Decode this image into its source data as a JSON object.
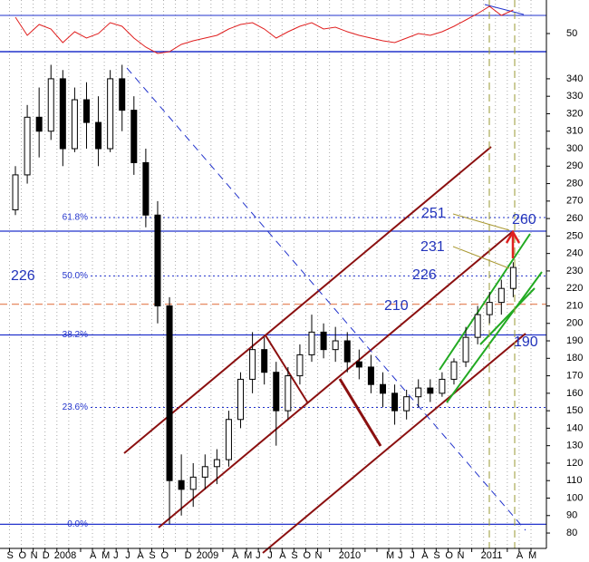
{
  "chart_data": {
    "type": "candlestick",
    "x": [
      0.5,
      1.5,
      2.5,
      3.5,
      4.5,
      5.5,
      6.5,
      7.5,
      8.5,
      9.5,
      10.5,
      11.5,
      12.5,
      13.5,
      14.5,
      15.5,
      16.5,
      17.5,
      18.5,
      19.5,
      20.5,
      21.5,
      22.5,
      23.5,
      24.5,
      25.5,
      26.5,
      27.5,
      28.5,
      29.5,
      30.5,
      31.5,
      32.5,
      33.5,
      34.5,
      35.5,
      36.5,
      37.5,
      38.5,
      39.5,
      40.5,
      41.5,
      42.5
    ],
    "open": [
      265,
      285,
      318,
      310,
      340,
      300,
      328,
      315,
      300,
      340,
      322,
      292,
      262,
      210,
      110,
      105,
      112,
      118,
      122,
      145,
      168,
      185,
      172,
      150,
      170,
      182,
      195,
      185,
      190,
      178,
      175,
      165,
      160,
      150,
      158,
      163,
      160,
      168,
      178,
      192,
      205,
      212,
      220
    ],
    "high": [
      290,
      325,
      335,
      348,
      345,
      335,
      338,
      330,
      345,
      348,
      330,
      300,
      270,
      215,
      125,
      120,
      125,
      128,
      150,
      172,
      195,
      192,
      178,
      175,
      188,
      205,
      200,
      198,
      195,
      185,
      182,
      172,
      165,
      162,
      168,
      168,
      172,
      180,
      198,
      210,
      218,
      225,
      235
    ],
    "low": [
      262,
      280,
      295,
      305,
      290,
      298,
      300,
      290,
      298,
      310,
      285,
      255,
      200,
      85,
      90,
      95,
      105,
      108,
      118,
      140,
      160,
      165,
      130,
      145,
      165,
      178,
      180,
      178,
      172,
      168,
      160,
      152,
      142,
      145,
      152,
      155,
      158,
      165,
      175,
      188,
      200,
      205,
      215
    ],
    "close": [
      285,
      318,
      310,
      340,
      300,
      328,
      315,
      300,
      340,
      322,
      292,
      262,
      210,
      110,
      105,
      112,
      118,
      122,
      145,
      168,
      185,
      172,
      150,
      170,
      182,
      195,
      185,
      190,
      178,
      175,
      165,
      160,
      150,
      158,
      163,
      160,
      168,
      178,
      192,
      205,
      212,
      220,
      232
    ],
    "up_color": "#ffffff",
    "down_color": "#000000",
    "xlim": [
      -0.8,
      45.3
    ],
    "xticks": [
      {
        "value": 0,
        "label": "S"
      },
      {
        "value": 1,
        "label": "O"
      },
      {
        "value": 2,
        "label": "N"
      },
      {
        "value": 3,
        "label": "D"
      },
      {
        "value": 4,
        "label": "2008"
      },
      {
        "value": 5,
        "label": null
      },
      {
        "value": 6,
        "label": null
      },
      {
        "value": 7,
        "label": "A"
      },
      {
        "value": 8,
        "label": "M"
      },
      {
        "value": 9,
        "label": "J"
      },
      {
        "value": 10,
        "label": "J"
      },
      {
        "value": 11,
        "label": "A"
      },
      {
        "value": 12,
        "label": "S"
      },
      {
        "value": 13,
        "label": "O"
      },
      {
        "value": 14,
        "label": null
      },
      {
        "value": 15,
        "label": "D"
      },
      {
        "value": 16,
        "label": "2009"
      },
      {
        "value": 17,
        "label": null
      },
      {
        "value": 18,
        "label": null
      },
      {
        "value": 19,
        "label": "A"
      },
      {
        "value": 20,
        "label": "M"
      },
      {
        "value": 21,
        "label": "J"
      },
      {
        "value": 22,
        "label": "J"
      },
      {
        "value": 23,
        "label": "A"
      },
      {
        "value": 24,
        "label": "S"
      },
      {
        "value": 25,
        "label": "O"
      },
      {
        "value": 26,
        "label": "N"
      },
      {
        "value": 27,
        "label": null
      },
      {
        "value": 28,
        "label": "2010"
      },
      {
        "value": 29,
        "label": null
      },
      {
        "value": 30,
        "label": null
      },
      {
        "value": 31,
        "label": null
      },
      {
        "value": 32,
        "label": "M"
      },
      {
        "value": 33,
        "label": "J"
      },
      {
        "value": 34,
        "label": "J"
      },
      {
        "value": 35,
        "label": "A"
      },
      {
        "value": 36,
        "label": "S"
      },
      {
        "value": 37,
        "label": "O"
      },
      {
        "value": 38,
        "label": "N"
      },
      {
        "value": 39,
        "label": null
      },
      {
        "value": 40,
        "label": "2011"
      },
      {
        "value": 41,
        "label": null
      },
      {
        "value": 42,
        "label": null
      },
      {
        "value": 43,
        "label": "A"
      },
      {
        "value": 44,
        "label": "M"
      }
    ],
    "ylim": [
      71.2,
      355
    ],
    "yticks": [
      80,
      90,
      100,
      110,
      120,
      130,
      140,
      150,
      160,
      170,
      180,
      190,
      200,
      210,
      220,
      230,
      240,
      250,
      260,
      270,
      280,
      290,
      300,
      310,
      320,
      330,
      340
    ],
    "grid": true,
    "levels": [
      {
        "label": "61.8%",
        "value": 260.6,
        "style": "dotted"
      },
      {
        "label": "50.0%",
        "value": 227.2,
        "style": "dotted"
      },
      {
        "label": "38.2%",
        "value": 193.4,
        "style": "solid"
      },
      {
        "label": "23.6%",
        "value": 151.9,
        "style": "dotted"
      },
      {
        "label": "0.0%",
        "value": 85,
        "style": "solid"
      }
    ],
    "level_color": "#2233cc",
    "lines": [
      {
        "value": 252.8,
        "color": "#2233cc",
        "style": "solid"
      },
      {
        "value": 211,
        "color": "#e8906a",
        "style": "dashed"
      }
    ],
    "annotations": [
      {
        "text": "226"
      },
      {
        "text": "251"
      },
      {
        "text": "260"
      },
      {
        "text": "231"
      },
      {
        "text": "226"
      },
      {
        "text": "210"
      },
      {
        "text": "190"
      }
    ],
    "indicator": {
      "type": "line",
      "color": "#e02020",
      "values": [
        68,
        48,
        60,
        55,
        40,
        52,
        45,
        50,
        62,
        58,
        45,
        35,
        28,
        30,
        38,
        42,
        45,
        48,
        55,
        60,
        62,
        55,
        45,
        52,
        58,
        62,
        55,
        57,
        52,
        48,
        45,
        42,
        40,
        45,
        50,
        48,
        52,
        58,
        65,
        72,
        80,
        70,
        76
      ],
      "ylim": [
        30,
        87
      ],
      "yticks": [
        50
      ],
      "levels": [
        70,
        30
      ],
      "level_color": "#2233cc"
    }
  }
}
